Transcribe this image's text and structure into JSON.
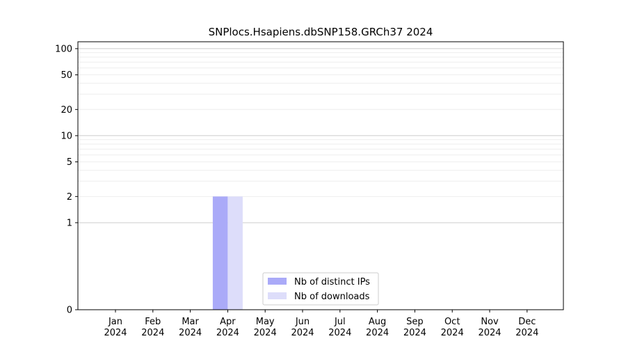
{
  "chart_data": {
    "type": "bar",
    "title": "SNPlocs.Hsapiens.dbSNP158.GRCh37 2024",
    "xlabel": "",
    "ylabel": "",
    "y_scale": "symlog",
    "ylim": [
      0,
      120
    ],
    "y_ticks": [
      0,
      1,
      2,
      5,
      10,
      20,
      50,
      100
    ],
    "y_tick_labels": [
      "0",
      "1",
      "2",
      "5",
      "10",
      "20",
      "50",
      "100"
    ],
    "categories": [
      {
        "month": "Jan",
        "year": "2024"
      },
      {
        "month": "Feb",
        "year": "2024"
      },
      {
        "month": "Mar",
        "year": "2024"
      },
      {
        "month": "Apr",
        "year": "2024"
      },
      {
        "month": "May",
        "year": "2024"
      },
      {
        "month": "Jun",
        "year": "2024"
      },
      {
        "month": "Jul",
        "year": "2024"
      },
      {
        "month": "Aug",
        "year": "2024"
      },
      {
        "month": "Sep",
        "year": "2024"
      },
      {
        "month": "Oct",
        "year": "2024"
      },
      {
        "month": "Nov",
        "year": "2024"
      },
      {
        "month": "Dec",
        "year": "2024"
      }
    ],
    "series": [
      {
        "name": "Nb of distinct IPs",
        "color": "#aaaaf8",
        "values": [
          0,
          0,
          0,
          2,
          0,
          0,
          0,
          0,
          0,
          0,
          0,
          0
        ]
      },
      {
        "name": "Nb of downloads",
        "color": "#ddddfa",
        "values": [
          0,
          0,
          0,
          2,
          0,
          0,
          0,
          0,
          0,
          0,
          0,
          0
        ]
      }
    ],
    "grid": true,
    "legend_position": "lower-center"
  }
}
